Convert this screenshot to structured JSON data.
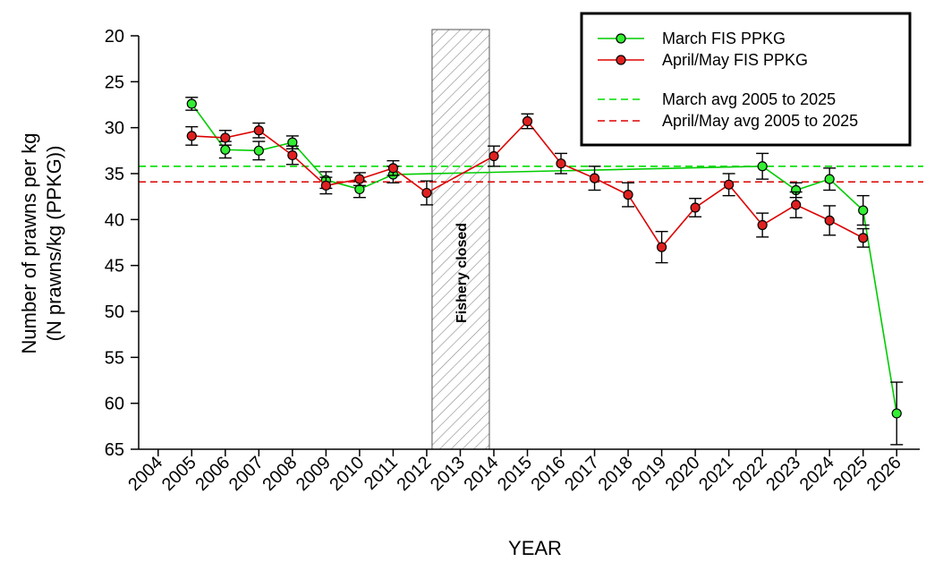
{
  "chart_data": {
    "type": "line",
    "xlabel": "YEAR",
    "ylabel_line1": "Number of prawns per kg",
    "ylabel_line2": "(N prawns/kg (PPKG))",
    "y_axis_inverted": true,
    "ylim": [
      20,
      65
    ],
    "yticks": [
      "20",
      "25",
      "30",
      "35",
      "40",
      "45",
      "50",
      "55",
      "60",
      "65"
    ],
    "x_categories": [
      "2004",
      "2005",
      "2006",
      "2007",
      "2008",
      "2009",
      "2010",
      "2011",
      "2012",
      "2013",
      "2014",
      "2015",
      "2016",
      "2017",
      "2018",
      "2019",
      "2020",
      "2021",
      "2022",
      "2023",
      "2024",
      "2025",
      "2026"
    ],
    "grid": false,
    "legend_position": "top-right",
    "series": [
      {
        "name": "March FIS PPKG",
        "color": "#00cc00",
        "marker_fill": "#33ee33",
        "points": [
          {
            "x": "2005",
            "y": 27.4,
            "err": 0.7
          },
          {
            "x": "2006",
            "y": 32.4,
            "err": 0.9
          },
          {
            "x": "2007",
            "y": 32.5,
            "err": 1.0
          },
          {
            "x": "2008",
            "y": 31.6,
            "err": 0.7
          },
          {
            "x": "2009",
            "y": 35.7,
            "err": 0.9
          },
          {
            "x": "2010",
            "y": 36.7,
            "err": 0.9
          },
          {
            "x": "2011",
            "y": 35.1,
            "err": 0.9
          },
          {
            "x": "2022",
            "y": 34.2,
            "err": 1.4
          },
          {
            "x": "2023",
            "y": 36.8,
            "err": 0.8
          },
          {
            "x": "2024",
            "y": 35.6,
            "err": 1.2
          },
          {
            "x": "2025",
            "y": 39.0,
            "err": 1.6
          },
          {
            "x": "2026",
            "y": 61.1,
            "err": 3.4
          }
        ]
      },
      {
        "name": "April/May FIS PPKG",
        "color": "#dd0000",
        "marker_fill": "#e02020",
        "points": [
          {
            "x": "2005",
            "y": 30.9,
            "err": 1.0
          },
          {
            "x": "2006",
            "y": 31.1,
            "err": 0.8
          },
          {
            "x": "2007",
            "y": 30.3,
            "err": 0.8
          },
          {
            "x": "2008",
            "y": 33.0,
            "err": 1.0
          },
          {
            "x": "2009",
            "y": 36.3,
            "err": 0.9
          },
          {
            "x": "2010",
            "y": 35.6,
            "err": 0.7
          },
          {
            "x": "2011",
            "y": 34.4,
            "err": 0.8
          },
          {
            "x": "2012",
            "y": 37.1,
            "err": 1.3
          },
          {
            "x": "2014",
            "y": 33.1,
            "err": 1.1
          },
          {
            "x": "2015",
            "y": 29.3,
            "err": 0.8
          },
          {
            "x": "2016",
            "y": 33.9,
            "err": 1.1
          },
          {
            "x": "2017",
            "y": 35.5,
            "err": 1.3
          },
          {
            "x": "2018",
            "y": 37.3,
            "err": 1.3
          },
          {
            "x": "2019",
            "y": 43.0,
            "err": 1.7
          },
          {
            "x": "2020",
            "y": 38.7,
            "err": 1.0
          },
          {
            "x": "2021",
            "y": 36.2,
            "err": 1.2
          },
          {
            "x": "2022",
            "y": 40.6,
            "err": 1.3
          },
          {
            "x": "2023",
            "y": 38.4,
            "err": 1.4
          },
          {
            "x": "2024",
            "y": 40.1,
            "err": 1.6
          },
          {
            "x": "2025",
            "y": 42.0,
            "err": 1.0
          }
        ]
      }
    ],
    "reference_lines": [
      {
        "name": "March avg 2005 to 2025",
        "y": 34.2,
        "color": "#00dd00",
        "style": "dashed"
      },
      {
        "name": "April/May avg 2005 to 2025",
        "y": 35.9,
        "color": "#dd0000",
        "style": "dashed"
      }
    ],
    "shaded_region": {
      "x_from": "2012",
      "x_to": "2014",
      "label": "Fishery closed",
      "pattern": "diagonal-hatch"
    }
  }
}
